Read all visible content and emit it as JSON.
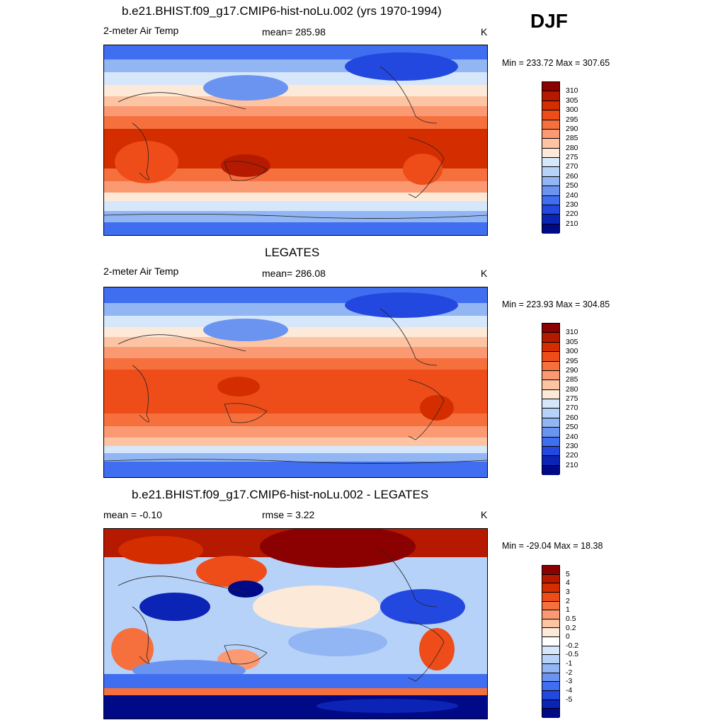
{
  "season": "DJF",
  "temp_colors": [
    "#8b0000",
    "#b51a00",
    "#d42e00",
    "#ee4d1a",
    "#f6703e",
    "#fb9a72",
    "#fdc4a3",
    "#fde9d8",
    "#d6e7fb",
    "#b7d2f8",
    "#92b5f4",
    "#6b94f0",
    "#3f6ef0",
    "#2248e0",
    "#0c24b5",
    "#000a86"
  ],
  "temp_ticks": [
    "310",
    "305",
    "300",
    "295",
    "290",
    "285",
    "280",
    "275",
    "270",
    "260",
    "250",
    "240",
    "230",
    "220",
    "210"
  ],
  "diff_colors": [
    "#8b0000",
    "#b51a00",
    "#d42e00",
    "#ee4d1a",
    "#f6703e",
    "#fb9a72",
    "#fdc4a3",
    "#fde9d8",
    "#ffffff",
    "#d6e7fb",
    "#b7d2f8",
    "#92b5f4",
    "#6b94f0",
    "#3f6ef0",
    "#2248e0",
    "#0c24b5",
    "#000a86"
  ],
  "diff_ticks": [
    "5",
    "4",
    "3",
    "2",
    "1",
    "0.5",
    "0.2",
    "0",
    "-0.2",
    "-0.5",
    "-1",
    "-2",
    "-3",
    "-4",
    "-5"
  ],
  "panels": [
    {
      "title": "b.e21.BHIST.f09_g17.CMIP6-hist-noLu.002 (yrs 1970-1994)",
      "left_label": "2-meter Air Temp",
      "center_label": "mean= 285.98",
      "units": "K",
      "minmax": "Min = 233.72 Max = 307.65"
    },
    {
      "title": "LEGATES",
      "left_label": "2-meter Air Temp",
      "center_label": "mean= 286.08",
      "units": "K",
      "minmax": "Min = 223.93 Max = 304.85"
    },
    {
      "title": "b.e21.BHIST.f09_g17.CMIP6-hist-noLu.002 - LEGATES",
      "left_label": "mean =  -0.10",
      "center_label": "rmse =   3.22",
      "units": "K",
      "minmax": "Min = -29.04 Max =  18.38"
    }
  ]
}
